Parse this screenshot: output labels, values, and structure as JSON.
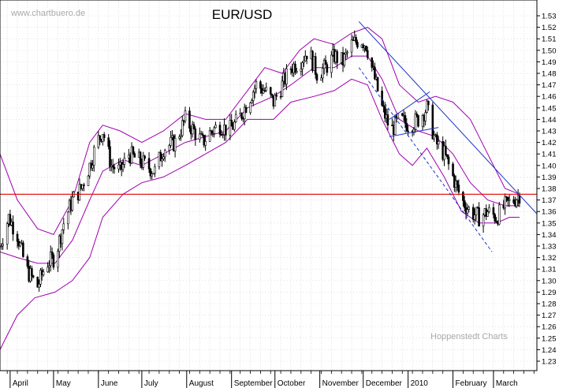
{
  "header": {
    "title": "EUR/USD",
    "source_left": "www.chartbuero.de",
    "source_right": "Hoppenstedt Charts"
  },
  "chart_data": {
    "type": "candlestick",
    "title": "EUR/USD",
    "xlabel": "",
    "ylabel": "",
    "ylim": [
      1.22,
      1.54
    ],
    "y_ticks": [
      1.23,
      1.24,
      1.25,
      1.26,
      1.27,
      1.28,
      1.29,
      1.3,
      1.31,
      1.32,
      1.33,
      1.34,
      1.35,
      1.36,
      1.37,
      1.38,
      1.39,
      1.4,
      1.41,
      1.42,
      1.43,
      1.44,
      1.45,
      1.46,
      1.47,
      1.48,
      1.49,
      1.5,
      1.51,
      1.52,
      1.53
    ],
    "x_ticks": [
      {
        "label": "April",
        "date": "2009-04-01"
      },
      {
        "label": "May",
        "date": "2009-05-01"
      },
      {
        "label": "June",
        "date": "2009-06-01"
      },
      {
        "label": "July",
        "date": "2009-07-01"
      },
      {
        "label": "August",
        "date": "2009-08-01"
      },
      {
        "label": "September",
        "date": "2009-09-01"
      },
      {
        "label": "October",
        "date": "2009-10-01"
      },
      {
        "label": "November",
        "date": "2009-11-01"
      },
      {
        "label": "December",
        "date": "2009-12-01"
      },
      {
        "label": "2010",
        "date": "2010-01-01"
      },
      {
        "label": "February",
        "date": "2010-02-01"
      },
      {
        "label": "March",
        "date": "2010-03-01"
      }
    ],
    "x_range": [
      "2009-03-25",
      "2010-03-31"
    ],
    "grid": true,
    "close_path": [
      [
        "2009-03-25",
        1.33
      ],
      [
        "2009-03-31",
        1.355
      ],
      [
        "2009-04-06",
        1.34
      ],
      [
        "2009-04-12",
        1.31
      ],
      [
        "2009-04-20",
        1.295
      ],
      [
        "2009-04-26",
        1.315
      ],
      [
        "2009-05-02",
        1.32
      ],
      [
        "2009-05-08",
        1.35
      ],
      [
        "2009-05-14",
        1.37
      ],
      [
        "2009-05-20",
        1.38
      ],
      [
        "2009-05-26",
        1.4
      ],
      [
        "2009-05-31",
        1.42
      ],
      [
        "2009-06-04",
        1.43
      ],
      [
        "2009-06-10",
        1.4
      ],
      [
        "2009-06-16",
        1.395
      ],
      [
        "2009-06-22",
        1.41
      ],
      [
        "2009-06-28",
        1.405
      ],
      [
        "2009-07-04",
        1.4
      ],
      [
        "2009-07-10",
        1.395
      ],
      [
        "2009-07-16",
        1.415
      ],
      [
        "2009-07-24",
        1.42
      ],
      [
        "2009-07-31",
        1.44
      ],
      [
        "2009-08-06",
        1.43
      ],
      [
        "2009-08-12",
        1.42
      ],
      [
        "2009-08-18",
        1.43
      ],
      [
        "2009-08-24",
        1.435
      ],
      [
        "2009-08-30",
        1.43
      ],
      [
        "2009-09-06",
        1.44
      ],
      [
        "2009-09-12",
        1.455
      ],
      [
        "2009-09-18",
        1.47
      ],
      [
        "2009-09-24",
        1.465
      ],
      [
        "2009-09-30",
        1.455
      ],
      [
        "2009-10-06",
        1.47
      ],
      [
        "2009-10-12",
        1.485
      ],
      [
        "2009-10-18",
        1.49
      ],
      [
        "2009-10-24",
        1.5
      ],
      [
        "2009-10-30",
        1.48
      ],
      [
        "2009-11-05",
        1.485
      ],
      [
        "2009-11-11",
        1.495
      ],
      [
        "2009-11-17",
        1.49
      ],
      [
        "2009-11-23",
        1.505
      ],
      [
        "2009-11-29",
        1.51
      ],
      [
        "2009-12-03",
        1.505
      ],
      [
        "2009-12-08",
        1.48
      ],
      [
        "2009-12-14",
        1.45
      ],
      [
        "2009-12-20",
        1.43
      ],
      [
        "2009-12-26",
        1.44
      ],
      [
        "2010-01-02",
        1.435
      ],
      [
        "2010-01-08",
        1.44
      ],
      [
        "2010-01-14",
        1.45
      ],
      [
        "2010-01-20",
        1.42
      ],
      [
        "2010-01-26",
        1.41
      ],
      [
        "2010-02-01",
        1.39
      ],
      [
        "2010-02-07",
        1.37
      ],
      [
        "2010-02-13",
        1.36
      ],
      [
        "2010-02-19",
        1.355
      ],
      [
        "2010-02-25",
        1.36
      ],
      [
        "2010-03-03",
        1.355
      ],
      [
        "2010-03-09",
        1.365
      ],
      [
        "2010-03-15",
        1.37
      ],
      [
        "2010-03-19",
        1.375
      ]
    ],
    "bollinger_upper": [
      [
        "2009-03-25",
        1.41
      ],
      [
        "2009-04-06",
        1.37
      ],
      [
        "2009-04-20",
        1.345
      ],
      [
        "2009-05-01",
        1.34
      ],
      [
        "2009-05-14",
        1.37
      ],
      [
        "2009-05-26",
        1.42
      ],
      [
        "2009-06-04",
        1.435
      ],
      [
        "2009-06-16",
        1.43
      ],
      [
        "2009-07-01",
        1.42
      ],
      [
        "2009-07-16",
        1.43
      ],
      [
        "2009-07-31",
        1.445
      ],
      [
        "2009-08-14",
        1.44
      ],
      [
        "2009-08-28",
        1.44
      ],
      [
        "2009-09-12",
        1.465
      ],
      [
        "2009-09-24",
        1.485
      ],
      [
        "2009-10-06",
        1.48
      ],
      [
        "2009-10-18",
        1.5
      ],
      [
        "2009-10-28",
        1.51
      ],
      [
        "2009-11-11",
        1.505
      ],
      [
        "2009-11-23",
        1.515
      ],
      [
        "2009-12-04",
        1.52
      ],
      [
        "2009-12-14",
        1.51
      ],
      [
        "2009-12-26",
        1.47
      ],
      [
        "2010-01-08",
        1.455
      ],
      [
        "2010-01-20",
        1.46
      ],
      [
        "2010-02-01",
        1.455
      ],
      [
        "2010-02-13",
        1.44
      ],
      [
        "2010-02-25",
        1.41
      ],
      [
        "2010-03-09",
        1.38
      ],
      [
        "2010-03-19",
        1.375
      ]
    ],
    "bollinger_lower": [
      [
        "2009-03-25",
        1.24
      ],
      [
        "2009-04-06",
        1.27
      ],
      [
        "2009-04-18",
        1.285
      ],
      [
        "2009-05-02",
        1.29
      ],
      [
        "2009-05-14",
        1.3
      ],
      [
        "2009-05-26",
        1.32
      ],
      [
        "2009-06-04",
        1.355
      ],
      [
        "2009-06-18",
        1.375
      ],
      [
        "2009-07-01",
        1.385
      ],
      [
        "2009-07-16",
        1.39
      ],
      [
        "2009-07-31",
        1.4
      ],
      [
        "2009-08-14",
        1.41
      ],
      [
        "2009-08-28",
        1.42
      ],
      [
        "2009-09-12",
        1.44
      ],
      [
        "2009-09-30",
        1.44
      ],
      [
        "2009-10-12",
        1.455
      ],
      [
        "2009-10-28",
        1.46
      ],
      [
        "2009-11-11",
        1.465
      ],
      [
        "2009-11-23",
        1.475
      ],
      [
        "2009-12-04",
        1.47
      ],
      [
        "2009-12-14",
        1.44
      ],
      [
        "2009-12-26",
        1.41
      ],
      [
        "2010-01-04",
        1.4
      ],
      [
        "2010-01-14",
        1.415
      ],
      [
        "2010-01-26",
        1.39
      ],
      [
        "2010-02-07",
        1.36
      ],
      [
        "2010-02-19",
        1.35
      ],
      [
        "2010-03-03",
        1.35
      ],
      [
        "2010-03-12",
        1.355
      ],
      [
        "2010-03-19",
        1.355
      ]
    ],
    "bollinger_mid": [
      [
        "2009-03-25",
        1.325
      ],
      [
        "2009-04-06",
        1.32
      ],
      [
        "2009-04-20",
        1.315
      ],
      [
        "2009-05-02",
        1.315
      ],
      [
        "2009-05-14",
        1.335
      ],
      [
        "2009-05-26",
        1.37
      ],
      [
        "2009-06-04",
        1.395
      ],
      [
        "2009-06-18",
        1.405
      ],
      [
        "2009-07-01",
        1.4
      ],
      [
        "2009-07-16",
        1.41
      ],
      [
        "2009-07-31",
        1.42
      ],
      [
        "2009-08-14",
        1.425
      ],
      [
        "2009-08-28",
        1.43
      ],
      [
        "2009-09-12",
        1.45
      ],
      [
        "2009-09-30",
        1.46
      ],
      [
        "2009-10-12",
        1.47
      ],
      [
        "2009-10-28",
        1.485
      ],
      [
        "2009-11-11",
        1.485
      ],
      [
        "2009-11-23",
        1.495
      ],
      [
        "2009-12-04",
        1.495
      ],
      [
        "2009-12-14",
        1.475
      ],
      [
        "2009-12-26",
        1.44
      ],
      [
        "2010-01-08",
        1.43
      ],
      [
        "2010-01-20",
        1.425
      ],
      [
        "2010-02-01",
        1.41
      ],
      [
        "2010-02-13",
        1.385
      ],
      [
        "2010-02-25",
        1.37
      ],
      [
        "2010-03-09",
        1.365
      ],
      [
        "2010-03-19",
        1.365
      ]
    ],
    "horizontal_line": {
      "y": 1.375,
      "color": "#e00000"
    },
    "trend_lines": [
      {
        "style": "solid",
        "from": [
          "2009-11-28",
          1.525
        ],
        "to": [
          "2010-03-31",
          1.358
        ]
      },
      {
        "style": "dashed",
        "from": [
          "2009-11-28",
          1.485
        ],
        "to": [
          "2010-02-28",
          1.325
        ]
      },
      {
        "style": "solid",
        "from": [
          "2009-12-19",
          1.44
        ],
        "to": [
          "2010-01-16",
          1.464
        ]
      },
      {
        "style": "solid",
        "from": [
          "2009-12-19",
          1.425
        ],
        "to": [
          "2010-01-22",
          1.433
        ]
      }
    ],
    "colors": {
      "candles": "#000000",
      "bollinger": "#a000b0",
      "horizontal_line": "#e00000",
      "trend_lines": "#1a35c8",
      "grid": "#cfcfcf",
      "source_text": "#aaaaaa"
    }
  }
}
